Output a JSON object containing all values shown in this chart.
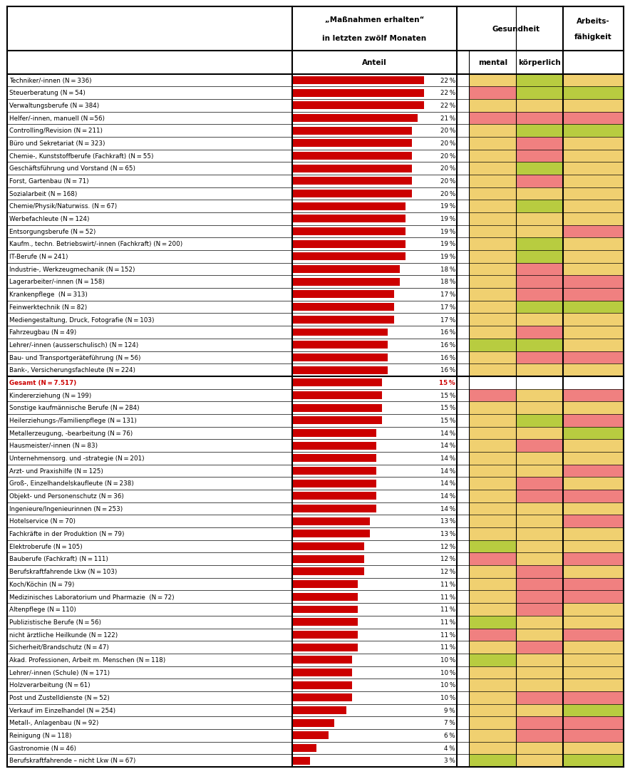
{
  "categories": [
    "Techniker/-innen (N = 336)",
    "Steuerberatung (N = 54)",
    "Verwaltungsberufe (N = 384)",
    "Helfer/-innen, manuell (N =56)",
    "Controlling/Revision (N = 211)",
    "Büro und Sekretariat (N = 323)",
    "Chemie-, Kunststoffberufe (Fachkraft) (N = 55)",
    "Geschäftsführung und Vorstand (N = 65)",
    "Forst, Gartenbau (N = 71)",
    "Sozialarbeit (N = 168)",
    "Chemie/Physik/Naturwiss. (N = 67)",
    "Werbefachleute (N = 124)",
    "Entsorgungsberufe (N = 52)",
    "Kaufm., techn. Betriebswirt/-innen (Fachkraft) (N = 200)",
    "IT-Berufe (N = 241)",
    "Industrie-, Werkzeugmechanik (N = 152)",
    "Lagerarbeiter/-innen (N = 158)",
    "Krankenpflege  (N = 313)",
    "Feinwerktechnik (N = 82)",
    "Mediengestaltung, Druck, Fotografie (N = 103)",
    "Fahrzeugbau (N = 49)",
    "Lehrer/-innen (ausserschulisch) (N = 124)",
    "Bau- und Transportgeräteführung (N = 56)",
    "Bank-, Versicherungsfachleute (N = 224)",
    "Gesamt (N = 7.517)",
    "Kindererziehung (N = 199)",
    "Sonstige kaufmännische Berufe (N = 284)",
    "Heilerziehungs-/Familienpflege (N = 131)",
    "Metallerzeugung, -bearbeitung (N = 76)",
    "Hausmeister/-innen (N = 83)",
    "Unternehmensorg. und -strategie (N = 201)",
    "Arzt- und Praxishilfe (N = 125)",
    "Groß-, Einzelhandelskaufleute (N = 238)",
    "Objekt- und Personenschutz (N = 36)",
    "Ingenieure/Ingenieurinnen (N = 253)",
    "Hotelservice (N = 70)",
    "Fachkräfte in der Produktion (N = 79)",
    "Elektroberufe (N = 105)",
    "Bauberufe (Fachkraft) (N = 111)",
    "Berufskraftfahrende Lkw (N = 103)",
    "Koch/Köchin (N = 79)",
    "Medizinisches Laboratorium und Pharmazie  (N = 72)",
    "Altenpflege (N = 110)",
    "Publizistische Berufe (N = 56)",
    "nicht ärztliche Heilkunde (N = 122)",
    "Sicherheit/Brandschutz (N = 47)",
    "Akad. Professionen, Arbeit m. Menschen (N = 118)",
    "Lehrer/-innen (Schule) (N = 171)",
    "Holzverarbeitung (N = 61)",
    "Post und Zustelldienste (N = 52)",
    "Verkauf im Einzelhandel (N = 254)",
    "Metall-, Anlagenbau (N = 92)",
    "Reinigung (N = 118)",
    "Gastronomie (N = 46)",
    "Berufskraftfahrende – nicht Lkw (N = 67)"
  ],
  "values": [
    22,
    22,
    22,
    21,
    20,
    20,
    20,
    20,
    20,
    20,
    19,
    19,
    19,
    19,
    19,
    18,
    18,
    17,
    17,
    17,
    16,
    16,
    16,
    16,
    15,
    15,
    15,
    15,
    14,
    14,
    14,
    14,
    14,
    14,
    14,
    13,
    13,
    12,
    12,
    12,
    11,
    11,
    11,
    11,
    11,
    11,
    10,
    10,
    10,
    10,
    9,
    7,
    6,
    4,
    3
  ],
  "gesamt_index": 24,
  "mental_colors": [
    "#f0d070",
    "#f08080",
    "#f0d070",
    "#f08080",
    "#f0d070",
    "#f0d070",
    "#f0d070",
    "#f0d070",
    "#f0d070",
    "#f0d070",
    "#f0d070",
    "#f0d070",
    "#f0d070",
    "#f0d070",
    "#f0d070",
    "#f0d070",
    "#f0d070",
    "#f0d070",
    "#f0d070",
    "#f0d070",
    "#f0d070",
    "#b8cc40",
    "#f0d070",
    "#f0d070",
    "#ffffff",
    "#f08080",
    "#f0d070",
    "#f0d070",
    "#f0d070",
    "#f0d070",
    "#f0d070",
    "#f0d070",
    "#f0d070",
    "#f0d070",
    "#f0d070",
    "#f0d070",
    "#f0d070",
    "#b8cc40",
    "#f08080",
    "#f0d070",
    "#f0d070",
    "#f0d070",
    "#f0d070",
    "#b8cc40",
    "#f08080",
    "#f0d070",
    "#b8cc40",
    "#f0d070",
    "#f0d070",
    "#f0d070",
    "#f0d070",
    "#f0d070",
    "#f0d070",
    "#f0d070",
    "#b8cc40"
  ],
  "koerperlich_colors": [
    "#b8cc40",
    "#b8cc40",
    "#f0d070",
    "#f08080",
    "#b8cc40",
    "#f08080",
    "#f08080",
    "#b8cc40",
    "#f08080",
    "#f0d070",
    "#b8cc40",
    "#f0d070",
    "#f0d070",
    "#b8cc40",
    "#b8cc40",
    "#f08080",
    "#f08080",
    "#f08080",
    "#b8cc40",
    "#f0d070",
    "#f08080",
    "#b8cc40",
    "#f08080",
    "#f0d070",
    "#ffffff",
    "#f0d070",
    "#f0d070",
    "#b8cc40",
    "#f0d070",
    "#f08080",
    "#f0d070",
    "#f0d070",
    "#f08080",
    "#f08080",
    "#f0d070",
    "#f0d070",
    "#f0d070",
    "#f0d070",
    "#f0d070",
    "#f08080",
    "#f08080",
    "#f08080",
    "#f08080",
    "#f0d070",
    "#f0d070",
    "#f08080",
    "#f0d070",
    "#f0d070",
    "#f0d070",
    "#f08080",
    "#f0d070",
    "#f08080",
    "#f08080",
    "#f0d070",
    "#f0d070"
  ],
  "arbeitsf_colors": [
    "#f0d070",
    "#b8cc40",
    "#f0d070",
    "#f08080",
    "#b8cc40",
    "#f0d070",
    "#f0d070",
    "#f0d070",
    "#f0d070",
    "#f0d070",
    "#f0d070",
    "#f0d070",
    "#f08080",
    "#f0d070",
    "#f0d070",
    "#f0d070",
    "#f08080",
    "#f08080",
    "#b8cc40",
    "#f0d070",
    "#f0d070",
    "#f0d070",
    "#f08080",
    "#f0d070",
    "#ffffff",
    "#f08080",
    "#f0d070",
    "#f08080",
    "#b8cc40",
    "#f0d070",
    "#f0d070",
    "#f08080",
    "#f0d070",
    "#f08080",
    "#f0d070",
    "#f08080",
    "#f0d070",
    "#f0d070",
    "#f08080",
    "#f0d070",
    "#f08080",
    "#f08080",
    "#f0d070",
    "#f0d070",
    "#f08080",
    "#f0d070",
    "#f0d070",
    "#f0d070",
    "#f0d070",
    "#f08080",
    "#b8cc40",
    "#f08080",
    "#f08080",
    "#f0d070",
    "#b8cc40"
  ],
  "bar_color": "#cc0000",
  "header1": "„Maßnahmen erhalten“",
  "header2": "in letzten zwölf Monaten",
  "header3": "Anteil",
  "header_gesundheit": "Gesundheit",
  "header_mental": "mental",
  "header_koerperlich": "körperlich",
  "header_arbeitsf": "Arbeits-\nfähigkeit",
  "fig_width": 8.7,
  "fig_height": 10.71
}
